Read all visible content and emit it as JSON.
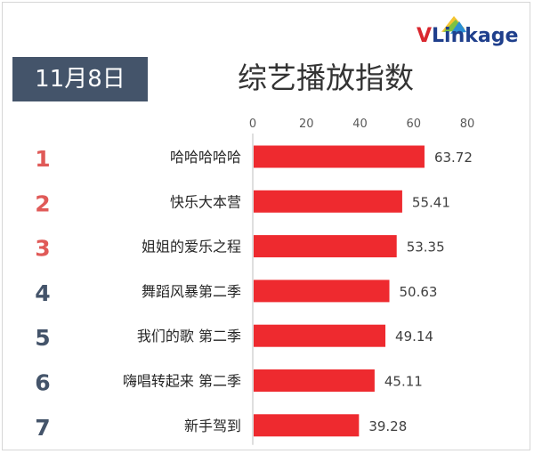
{
  "header": {
    "date": "11月8日",
    "title": "综艺播放指数",
    "logo_v": "V",
    "logo_rest": "Linkage",
    "brand_blue": "#1f3f8c",
    "brand_red": "#d9262e"
  },
  "chart_data": {
    "type": "bar",
    "orientation": "horizontal",
    "title": "综艺播放指数",
    "xlim": [
      0,
      80
    ],
    "x_ticks": [
      0,
      20,
      40,
      60,
      80
    ],
    "grid": false,
    "bar_color": "#ee2a2f",
    "rank_colors": {
      "top3": "#e05a58",
      "rest": "#44546a"
    },
    "ranks": [
      "1",
      "2",
      "3",
      "4",
      "5",
      "6",
      "7"
    ],
    "categories": [
      "哈哈哈哈哈",
      "快乐大本营",
      "姐姐的爱乐之程",
      "舞蹈风暴第二季",
      "我们的歌 第二季",
      "嗨唱转起来 第二季",
      "新手驾到"
    ],
    "values": [
      63.72,
      55.41,
      53.35,
      50.63,
      49.14,
      45.11,
      39.28
    ],
    "value_labels": [
      "63.72",
      "55.41",
      "53.35",
      "50.63",
      "49.14",
      "45.11",
      "39.28"
    ]
  }
}
